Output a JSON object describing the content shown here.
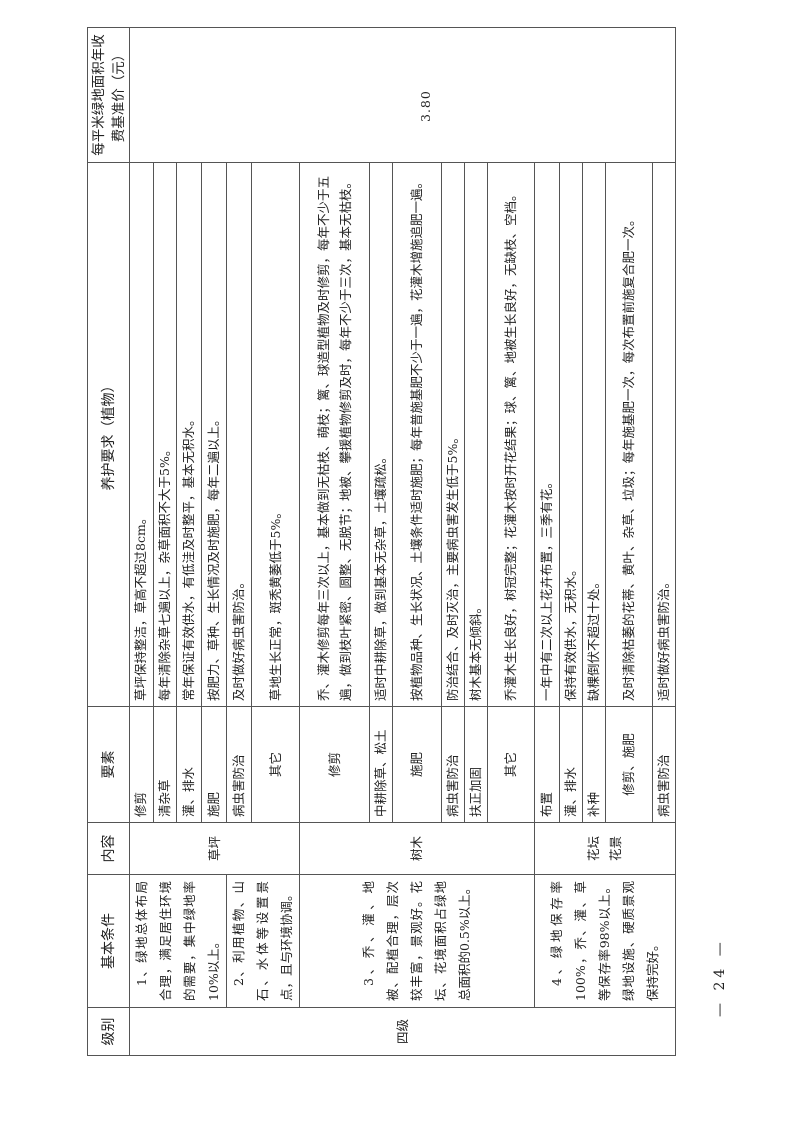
{
  "header": {
    "level": "级别",
    "basic": "基本条件",
    "content": "内容",
    "element": "要素",
    "requirement": "养护要求（植物）",
    "price": "每平米绿地面积年收费基准价（元）"
  },
  "level": "四级",
  "price": "3.80",
  "conditions": [
    "1、绿地总体布局合理，满足居住环境的需要，集中绿地率10%以上。",
    "2、利用植物、山石、水体等设置景点，且与环境协调。",
    "3、乔、灌、地被、配植合理，层次较丰富，景观好。花坛、花境面积占绿地总面积的0.5%以上。",
    "4、绿地保存率100%，乔、灌、草等保存率98%以上。绿地设施、硬质景观保持完好。"
  ],
  "contents": [
    "草坪",
    "树木",
    "花坛\n花景"
  ],
  "items": [
    {
      "element": "修剪",
      "requirement": "草坪保持整洁，草高不超过8cm。"
    },
    {
      "element": "清杂草",
      "requirement": "每年清除杂草七遍以上，杂草面积不大于5%。"
    },
    {
      "element": "灌、排水",
      "requirement": "常年保证有效供水，有低洼及时整平，基本无积水。"
    },
    {
      "element": "施肥",
      "requirement": "按肥力、草种、生长情况及时施肥，每年二遍以上。"
    },
    {
      "element": "病虫害防治",
      "requirement": "及时做好病虫害防治。"
    },
    {
      "element": "其它",
      "requirement": "草地生长正常，斑秃黄萎低于5%。"
    },
    {
      "element": "修剪",
      "requirement": "乔、灌木修剪每年三次以上，基本做到无枯枝、萌枝；篱、球造型植物及时修剪，每年不少于五遍，做到枝叶紧密、圆整、无脱节；地被、攀援植物修剪及时，每年不少于三次，基本无枯枝。"
    },
    {
      "element": "中耕除草、松土",
      "requirement": "适时中耕除草，做到基本无杂草，土壤疏松。"
    },
    {
      "element": "施肥",
      "requirement": "按植物品种、生长状况、土壤条件适时施肥；每年普施基肥不少于一遍，花灌木增施追肥一遍。"
    },
    {
      "element": "病虫害防治",
      "requirement": "防治结合、及时灭治，主要病虫害发生低于5%。"
    },
    {
      "element": "扶正加固",
      "requirement": "树木基本无倾斜。"
    },
    {
      "element": "其它",
      "requirement": "乔灌木生长良好，树冠完整；花灌木按时开花结果；球、篱、地被生长良好，无缺枝、空档。"
    },
    {
      "element": "布置",
      "requirement": "一年中有二次以上花卉布置，三季有花。"
    },
    {
      "element": "灌、排水",
      "requirement": "保持有效供水，无积水。"
    },
    {
      "element": "补种",
      "requirement": "缺棵倒伏不超过十处。"
    },
    {
      "element": "修剪、施肥",
      "requirement": "及时清除枯萎的花蒂、黄叶、杂草、垃圾；每年施基肥一次，每次布置前施复合肥一次。"
    },
    {
      "element": "病虫害防治",
      "requirement": "适时做好病虫害防治。"
    }
  ],
  "page_number": "— 24 —"
}
